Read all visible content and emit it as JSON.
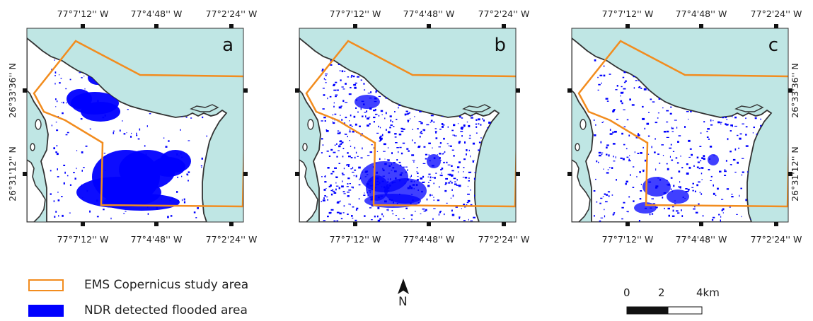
{
  "panels": [
    {
      "letter": "a",
      "top_ticks": [
        "77°7'12'' W",
        "77°4'48'' W",
        "77°2'24'' W"
      ],
      "bottom_ticks": [
        "77°7'12'' W",
        "77°4'48'' W",
        "77°2'24'' W"
      ],
      "left_ticks": [
        "26°33'36'' N",
        "26°31'12'' N"
      ],
      "right_ticks": []
    },
    {
      "letter": "b",
      "top_ticks": [
        "77°7'12'' W",
        "77°4'48'' W",
        "77°2'24'' W"
      ],
      "bottom_ticks": [
        "77°7'12'' W",
        "77°4'48'' W",
        "77°2'24'' W"
      ],
      "left_ticks": [],
      "right_ticks": []
    },
    {
      "letter": "c",
      "top_ticks": [
        "77°7'12'' W",
        "77°4'48'' W",
        "77°2'24'' W"
      ],
      "bottom_ticks": [
        "77°7'12'' W",
        "77°4'48'' W",
        "77°2'24'' W"
      ],
      "left_ticks": [],
      "right_ticks": [
        "26°33'36'' N",
        "26°31'12'' N"
      ]
    }
  ],
  "legend": {
    "study_area_label": "EMS Copernicus study area",
    "flooded_label": "NDR detected flooded area"
  },
  "north_arrow": {
    "label": "N"
  },
  "scale_bar": {
    "labels": [
      "0",
      "2",
      "4km"
    ]
  },
  "colors": {
    "water": "#bfe6e4",
    "land": "#ffffff",
    "coast": "#333333",
    "study_area": "#f28c1e",
    "flooded": "#0000ff"
  }
}
